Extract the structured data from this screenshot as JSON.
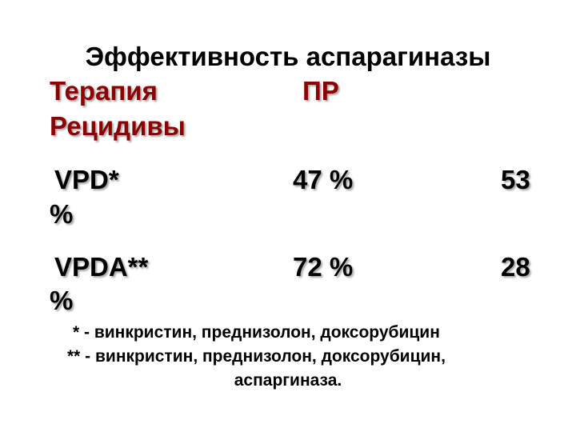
{
  "title": "Эффективность аспарагиназы",
  "header": {
    "therapy": "Терапия",
    "cr": "ПР",
    "relapses": "Рецидивы"
  },
  "rows": [
    {
      "therapy": "VPD*",
      "cr": "47 %",
      "relapses": "53",
      "unit": "%"
    },
    {
      "therapy": "VPDA**",
      "cr": "72 %",
      "relapses": "28",
      "unit": "%"
    }
  ],
  "footnotes": {
    "line1": "*  - винкристин, преднизолон, доксорубицин",
    "line2": "** - винкристин, преднизолон, доксорубицин,",
    "line3": "аспаргиназа."
  }
}
